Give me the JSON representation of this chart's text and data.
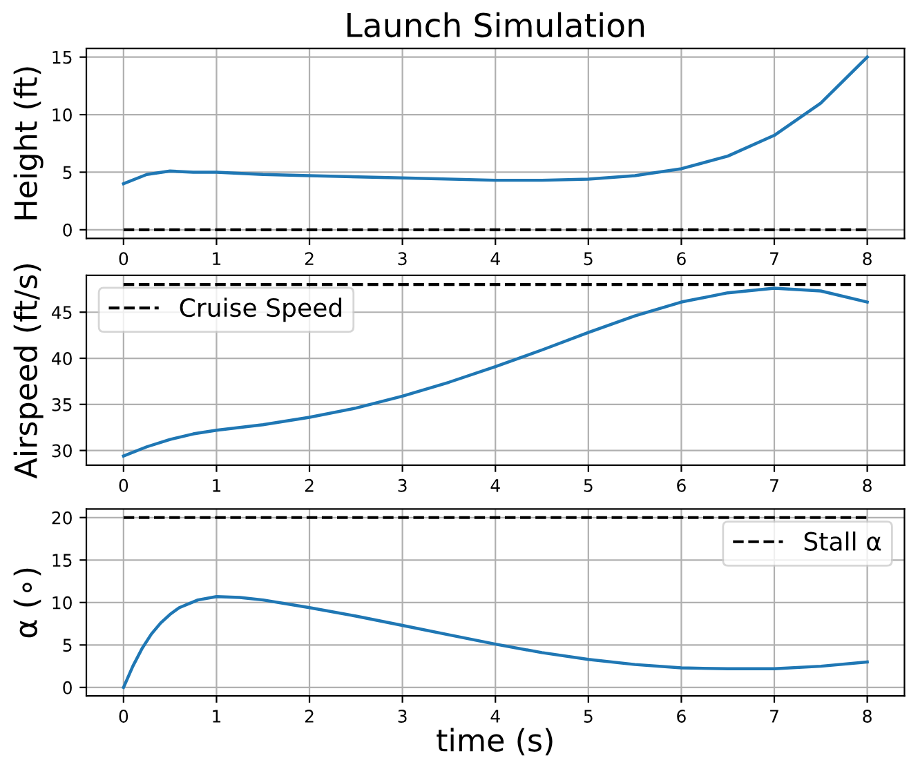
{
  "chart_data": [
    {
      "type": "line",
      "title": "Launch Simulation",
      "ylabel": "Height (ft)",
      "series": [
        {
          "color": "#1f77b4",
          "x": [
            0,
            0.25,
            0.5,
            0.75,
            1,
            1.5,
            2,
            3,
            4,
            4.5,
            5,
            5.5,
            6,
            6.5,
            7,
            7.5,
            8
          ],
          "values": [
            4.0,
            4.8,
            5.1,
            5.0,
            5.0,
            4.8,
            4.7,
            4.5,
            4.3,
            4.3,
            4.4,
            4.7,
            5.3,
            6.4,
            8.2,
            11.0,
            15.0
          ]
        }
      ],
      "ref_lines": [
        {
          "axis": "y",
          "value": 0,
          "color": "#000000",
          "line_style": "dashed"
        }
      ],
      "xlim": [
        -0.4,
        8.4
      ],
      "ylim": [
        -0.75,
        15.75
      ],
      "xticks": [
        0,
        1,
        2,
        3,
        4,
        5,
        6,
        7,
        8
      ],
      "yticks": [
        0,
        5,
        10,
        15
      ],
      "grid": true
    },
    {
      "type": "line",
      "ylabel": "Airspeed (ft/s)",
      "series": [
        {
          "color": "#1f77b4",
          "x": [
            0,
            0.25,
            0.5,
            0.75,
            1,
            1.5,
            2,
            2.5,
            3,
            3.5,
            4,
            4.5,
            5,
            5.5,
            6,
            6.5,
            7,
            7.5,
            8
          ],
          "values": [
            29.4,
            30.4,
            31.2,
            31.8,
            32.2,
            32.8,
            33.6,
            34.6,
            35.9,
            37.4,
            39.1,
            40.9,
            42.8,
            44.6,
            46.1,
            47.1,
            47.6,
            47.3,
            46.1
          ]
        }
      ],
      "ref_lines": [
        {
          "axis": "y",
          "value": 48,
          "label": "Cruise Speed",
          "color": "#000000",
          "line_style": "dashed"
        }
      ],
      "xlim": [
        -0.4,
        8.4
      ],
      "ylim": [
        28.4,
        49
      ],
      "xticks": [
        0,
        1,
        2,
        3,
        4,
        5,
        6,
        7,
        8
      ],
      "yticks": [
        30,
        35,
        40,
        45
      ],
      "grid": true,
      "legend": "top left"
    },
    {
      "type": "line",
      "ylabel": "α (∘)",
      "xlabel": "time (s)",
      "series": [
        {
          "color": "#1f77b4",
          "x": [
            0,
            0.1,
            0.2,
            0.3,
            0.4,
            0.5,
            0.6,
            0.8,
            1,
            1.25,
            1.5,
            2,
            2.5,
            3,
            3.5,
            4,
            4.5,
            5,
            5.5,
            6,
            6.5,
            7,
            7.5,
            8
          ],
          "values": [
            0,
            2.5,
            4.6,
            6.3,
            7.6,
            8.6,
            9.4,
            10.3,
            10.7,
            10.6,
            10.3,
            9.4,
            8.4,
            7.3,
            6.2,
            5.1,
            4.1,
            3.3,
            2.7,
            2.3,
            2.2,
            2.2,
            2.5,
            3.0
          ]
        }
      ],
      "ref_lines": [
        {
          "axis": "y",
          "value": 20,
          "label": "Stall α",
          "color": "#000000",
          "line_style": "dashed"
        }
      ],
      "xlim": [
        -0.4,
        8.4
      ],
      "ylim": [
        -1,
        21
      ],
      "xticks": [
        0,
        1,
        2,
        3,
        4,
        5,
        6,
        7,
        8
      ],
      "yticks": [
        0,
        5,
        10,
        15,
        20
      ],
      "grid": true,
      "legend": "top right"
    }
  ]
}
